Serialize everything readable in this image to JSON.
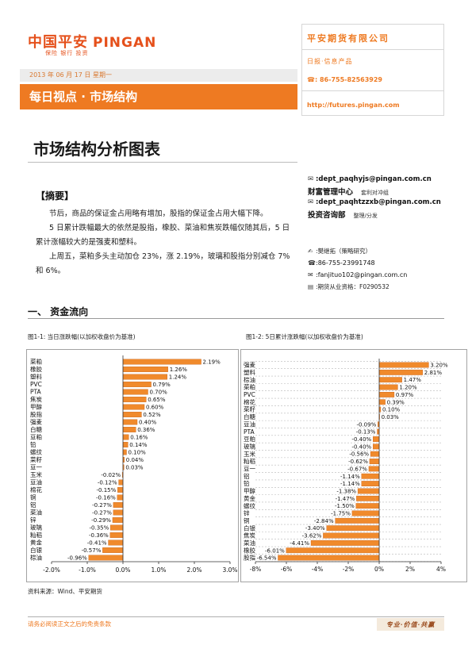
{
  "header": {
    "logo": {
      "cn": "中国平安",
      "en": "PINGAN",
      "tagline": "保险  银行  投资"
    },
    "date": "2013 年 06 月 17 日  星期一",
    "banner": "每日视点 · 市场结构",
    "company": {
      "name": "平安期货有限公司",
      "product": "日报·信息产品",
      "phone_icon": "phone-icon",
      "phone": ": 86-755-82563929",
      "url": "http://futures.pingan.com"
    }
  },
  "title": "市场结构分析图表",
  "contacts": {
    "email_1": ":dept_paqhyjs@pingan.com.cn",
    "dept_1": {
      "name": "财富管理中心",
      "role": "套利对冲组"
    },
    "email_2": ":dept_paqhtzzxb@pingan.com.cn",
    "dept_2": {
      "name": "投资咨询部",
      "role": "整理/分发"
    },
    "analyst": ":樊继拓（策略研究）",
    "phone": ":86-755-23991748",
    "email_3": ":fanjituo102@pingan.com.cn",
    "license": ":期货从业资格：F0290532",
    "icons": [
      "email-icon",
      "phone-icon",
      "pen-icon",
      "certificate-icon"
    ]
  },
  "summary": {
    "heading": "【摘要】",
    "paragraphs": [
      "节后，商品的保证金占用略有增加，股指的保证金占用大幅下降。",
      "5 日累计跌幅最大的依然是股指，橡胶、菜油和焦炭跌幅仅随其后，5 日累计涨幅较大的是强麦和塑料。",
      "上周五，菜粕多头主动加仓 23%，涨 2.19%，玻璃和股指分别减仓 7%和 6%。"
    ]
  },
  "section1": {
    "heading": "一、 资金流向"
  },
  "chart_data": [
    {
      "type": "bar",
      "orientation": "horizontal",
      "title": "图1-1: 当日涨跌幅(以加权收盘价为基准)",
      "categories": [
        "菜粕",
        "橡胶",
        "塑料",
        "PVC",
        "PTA",
        "焦炭",
        "甲醇",
        "股指",
        "强麦",
        "白糖",
        "豆粕",
        "铅",
        "螺纹",
        "菜籽",
        "豆一",
        "玉米",
        "豆油",
        "棉花",
        "铜",
        "铝",
        "菜油",
        "锌",
        "玻璃",
        "籼稻",
        "黄金",
        "白银",
        "棕油"
      ],
      "values": [
        2.19,
        1.26,
        1.24,
        0.79,
        0.7,
        0.65,
        0.6,
        0.52,
        0.4,
        0.36,
        0.16,
        0.14,
        0.1,
        0.04,
        0.03,
        -0.02,
        -0.12,
        -0.15,
        -0.16,
        -0.27,
        -0.27,
        -0.29,
        -0.35,
        -0.36,
        -0.41,
        -0.57,
        -0.96
      ],
      "data_labels": [
        "2.19%",
        "1.26%",
        "1.24%",
        "0.79%",
        "0.70%",
        "0.65%",
        "0.60%",
        "0.52%",
        "0.40%",
        "0.36%",
        "0.16%",
        "0.14%",
        "0.10%",
        "0.04%",
        "0.03%",
        "-0.02%",
        "-0.12%",
        "-0.15%",
        "-0.16%",
        "-0.27%",
        "-0.27%",
        "-0.29%",
        "-0.35%",
        "-0.36%",
        "-0.41%",
        "-0.57%",
        "-0.96%"
      ],
      "xlim": [
        -2,
        3
      ],
      "xticks": [
        -2,
        -1,
        0,
        1,
        2,
        3
      ],
      "xtick_labels": [
        "-2.0%",
        "-1.0%",
        "0.0%",
        "1.0%",
        "2.0%",
        "3.0%"
      ],
      "grid": false
    },
    {
      "type": "bar",
      "orientation": "horizontal",
      "title": "图1-2: 5日累计涨跌幅(以加权收盘价为基准)",
      "categories": [
        "强麦",
        "塑料",
        "棕油",
        "菜粕",
        "PVC",
        "棉花",
        "菜籽",
        "白糖",
        "豆油",
        "PTA",
        "豆粕",
        "玻璃",
        "玉米",
        "籼稻",
        "豆一",
        "铝",
        "铅",
        "甲醇",
        "黄金",
        "螺纹",
        "锌",
        "铜",
        "白银",
        "焦炭",
        "菜油",
        "橡胶",
        "股指"
      ],
      "values": [
        3.2,
        2.81,
        1.47,
        1.2,
        0.97,
        0.39,
        0.1,
        0.03,
        -0.09,
        -0.13,
        -0.4,
        -0.4,
        -0.56,
        -0.62,
        -0.67,
        -1.14,
        -1.14,
        -1.38,
        -1.47,
        -1.5,
        -1.75,
        -2.84,
        -3.4,
        -3.62,
        -4.41,
        -6.01,
        -6.54
      ],
      "data_labels": [
        "3.20%",
        "2.81%",
        "1.47%",
        "1.20%",
        "0.97%",
        "0.39%",
        "0.10%",
        "0.03%",
        "-0.09%",
        "-0.13%",
        "-0.40%",
        "-0.40%",
        "-0.56%",
        "-0.62%",
        "-0.67%",
        "-1.14%",
        "-1.14%",
        "-1.38%",
        "-1.47%",
        "-1.50%",
        "-1.75%",
        "-2.84%",
        "-3.40%",
        "-3.62%",
        "-4.41%",
        "-6.01%",
        "-6.54%"
      ],
      "xlim": [
        -8,
        4
      ],
      "xticks": [
        -8,
        -6,
        -4,
        -2,
        0,
        2,
        4
      ],
      "xtick_labels": [
        "-8%",
        "-6%",
        "-4%",
        "-2%",
        "0%",
        "2%",
        "4%"
      ],
      "grid": true
    }
  ],
  "source": "资料来源：Wind、平安期货",
  "footer": {
    "disclaimer": "请务必阅读正文之后的免责条款",
    "slogan": "专业·价值·共赢"
  },
  "colors": {
    "brand": "#EE7A22",
    "logo": "#E5501B",
    "bar": "#F08A2C",
    "bar_edge": "#C8621A",
    "date_text": "#D9772E"
  }
}
